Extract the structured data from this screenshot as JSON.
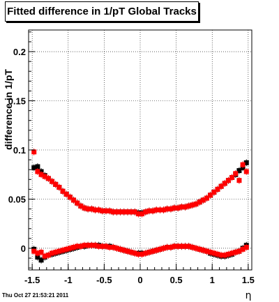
{
  "footer": {
    "timestamp": "Thu Oct 27 21:53:21 2011"
  },
  "chart_data": {
    "type": "scatter",
    "title": "Fitted difference in 1/pT  Global Tracks",
    "xlabel": "η",
    "ylabel": "difference in 1/pT",
    "xlim": [
      -1.55,
      1.55
    ],
    "ylim": [
      -0.022,
      0.222
    ],
    "xticks": [
      -1.5,
      -1,
      -0.5,
      0,
      0.5,
      1,
      1.5
    ],
    "xtick_labels": [
      "-1.5",
      "-1",
      "-0.5",
      "0",
      "0.5",
      "1",
      "1.5"
    ],
    "yticks": [
      0,
      0.05,
      0.1,
      0.15,
      0.2
    ],
    "ytick_labels": [
      "0",
      "0.05",
      "0.1",
      "0.15",
      "0.2"
    ],
    "grid": true,
    "series": [
      {
        "color": "#000000",
        "marker": "square",
        "points": [
          [
            -1.475,
            0.082
          ],
          [
            -1.425,
            0.083
          ],
          [
            -1.375,
            0.078
          ],
          [
            -1.325,
            0.074
          ],
          [
            -1.275,
            0.071
          ],
          [
            -1.225,
            0.068
          ],
          [
            -1.175,
            0.065
          ],
          [
            -1.125,
            0.062
          ],
          [
            -1.075,
            0.058
          ],
          [
            -1.025,
            0.055
          ],
          [
            -0.975,
            0.052
          ],
          [
            -0.925,
            0.049
          ],
          [
            -0.875,
            0.046
          ],
          [
            -0.825,
            0.043
          ],
          [
            -0.775,
            0.041
          ],
          [
            -0.725,
            0.04
          ],
          [
            -0.675,
            0.04
          ],
          [
            -0.625,
            0.039
          ],
          [
            -0.575,
            0.039
          ],
          [
            -0.525,
            0.038
          ],
          [
            -0.475,
            0.038
          ],
          [
            -0.425,
            0.038
          ],
          [
            -0.375,
            0.037
          ],
          [
            -0.325,
            0.037
          ],
          [
            -0.275,
            0.037
          ],
          [
            -0.225,
            0.037
          ],
          [
            -0.175,
            0.037
          ],
          [
            -0.125,
            0.037
          ],
          [
            -0.075,
            0.037
          ],
          [
            -0.025,
            0.036
          ],
          [
            0.025,
            0.036
          ],
          [
            0.075,
            0.037
          ],
          [
            0.125,
            0.038
          ],
          [
            0.175,
            0.038
          ],
          [
            0.225,
            0.039
          ],
          [
            0.275,
            0.039
          ],
          [
            0.325,
            0.039
          ],
          [
            0.375,
            0.04
          ],
          [
            0.425,
            0.04
          ],
          [
            0.475,
            0.041
          ],
          [
            0.525,
            0.041
          ],
          [
            0.575,
            0.042
          ],
          [
            0.625,
            0.042
          ],
          [
            0.675,
            0.043
          ],
          [
            0.725,
            0.044
          ],
          [
            0.775,
            0.045
          ],
          [
            0.825,
            0.047
          ],
          [
            0.875,
            0.049
          ],
          [
            0.925,
            0.051
          ],
          [
            0.975,
            0.054
          ],
          [
            1.025,
            0.057
          ],
          [
            1.075,
            0.06
          ],
          [
            1.125,
            0.063
          ],
          [
            1.175,
            0.066
          ],
          [
            1.225,
            0.069
          ],
          [
            1.275,
            0.072
          ],
          [
            1.325,
            0.075
          ],
          [
            1.375,
            0.079
          ],
          [
            1.425,
            0.082
          ],
          [
            1.475,
            0.087
          ],
          [
            -1.475,
            -0.001
          ],
          [
            -1.425,
            -0.009
          ],
          [
            -1.375,
            -0.012
          ],
          [
            -1.325,
            -0.009
          ],
          [
            -1.275,
            -0.007
          ],
          [
            -1.225,
            -0.006
          ],
          [
            -1.175,
            -0.005
          ],
          [
            -1.125,
            -0.004
          ],
          [
            -1.075,
            -0.003
          ],
          [
            -1.025,
            -0.002
          ],
          [
            -0.975,
            -0.001
          ],
          [
            -0.925,
            0.0
          ],
          [
            -0.875,
            0.001
          ],
          [
            -0.825,
            0.002
          ],
          [
            -0.775,
            0.002
          ],
          [
            -0.725,
            0.003
          ],
          [
            -0.675,
            0.003
          ],
          [
            -0.625,
            0.003
          ],
          [
            -0.575,
            0.003
          ],
          [
            -0.525,
            0.002
          ],
          [
            -0.475,
            0.002
          ],
          [
            -0.425,
            0.002
          ],
          [
            -0.375,
            0.001
          ],
          [
            -0.325,
            0.0
          ],
          [
            -0.275,
            -0.001
          ],
          [
            -0.225,
            -0.002
          ],
          [
            -0.175,
            -0.003
          ],
          [
            -0.125,
            -0.004
          ],
          [
            -0.075,
            -0.005
          ],
          [
            -0.025,
            -0.005
          ],
          [
            0.025,
            -0.005
          ],
          [
            0.075,
            -0.005
          ],
          [
            0.125,
            -0.004
          ],
          [
            0.175,
            -0.003
          ],
          [
            0.225,
            -0.002
          ],
          [
            0.275,
            -0.001
          ],
          [
            0.325,
            0.0
          ],
          [
            0.375,
            0.001
          ],
          [
            0.425,
            0.001
          ],
          [
            0.475,
            0.002
          ],
          [
            0.525,
            0.002
          ],
          [
            0.575,
            0.002
          ],
          [
            0.625,
            0.002
          ],
          [
            0.675,
            0.002
          ],
          [
            0.725,
            0.001
          ],
          [
            0.775,
            0.0
          ],
          [
            0.825,
            -0.001
          ],
          [
            0.875,
            -0.002
          ],
          [
            0.925,
            -0.003
          ],
          [
            0.975,
            -0.005
          ],
          [
            1.025,
            -0.006
          ],
          [
            1.075,
            -0.007
          ],
          [
            1.125,
            -0.008
          ],
          [
            1.175,
            -0.008
          ],
          [
            1.225,
            -0.007
          ],
          [
            1.275,
            -0.006
          ],
          [
            1.325,
            -0.004
          ],
          [
            1.375,
            -0.003
          ],
          [
            1.425,
            0.0
          ],
          [
            1.475,
            0.003
          ]
        ]
      },
      {
        "color": "#ff0000",
        "marker": "square",
        "points": [
          [
            -1.475,
            0.098
          ],
          [
            -1.425,
            0.078
          ],
          [
            -1.375,
            0.075
          ],
          [
            -1.325,
            0.073
          ],
          [
            -1.275,
            0.071
          ],
          [
            -1.225,
            0.068
          ],
          [
            -1.175,
            0.065
          ],
          [
            -1.125,
            0.062
          ],
          [
            -1.075,
            0.058
          ],
          [
            -1.025,
            0.055
          ],
          [
            -0.975,
            0.052
          ],
          [
            -0.925,
            0.049
          ],
          [
            -0.875,
            0.046
          ],
          [
            -0.825,
            0.043
          ],
          [
            -0.775,
            0.041
          ],
          [
            -0.725,
            0.04
          ],
          [
            -0.675,
            0.04
          ],
          [
            -0.625,
            0.039
          ],
          [
            -0.575,
            0.039
          ],
          [
            -0.525,
            0.038
          ],
          [
            -0.475,
            0.038
          ],
          [
            -0.425,
            0.038
          ],
          [
            -0.375,
            0.037
          ],
          [
            -0.325,
            0.037
          ],
          [
            -0.275,
            0.037
          ],
          [
            -0.225,
            0.037
          ],
          [
            -0.175,
            0.037
          ],
          [
            -0.125,
            0.037
          ],
          [
            -0.075,
            0.037
          ],
          [
            -0.025,
            0.035
          ],
          [
            0.025,
            0.035
          ],
          [
            0.075,
            0.037
          ],
          [
            0.125,
            0.038
          ],
          [
            0.175,
            0.038
          ],
          [
            0.225,
            0.039
          ],
          [
            0.275,
            0.039
          ],
          [
            0.325,
            0.039
          ],
          [
            0.375,
            0.04
          ],
          [
            0.425,
            0.04
          ],
          [
            0.475,
            0.041
          ],
          [
            0.525,
            0.041
          ],
          [
            0.575,
            0.042
          ],
          [
            0.625,
            0.042
          ],
          [
            0.675,
            0.043
          ],
          [
            0.725,
            0.044
          ],
          [
            0.775,
            0.045
          ],
          [
            0.825,
            0.047
          ],
          [
            0.875,
            0.049
          ],
          [
            0.925,
            0.051
          ],
          [
            0.975,
            0.054
          ],
          [
            1.025,
            0.057
          ],
          [
            1.075,
            0.06
          ],
          [
            1.125,
            0.063
          ],
          [
            1.175,
            0.066
          ],
          [
            1.225,
            0.069
          ],
          [
            1.275,
            0.072
          ],
          [
            1.325,
            0.076
          ],
          [
            1.375,
            0.069
          ],
          [
            1.425,
            0.085
          ],
          [
            1.475,
            0.078
          ],
          [
            -1.475,
            -0.003
          ],
          [
            -1.425,
            -0.005
          ],
          [
            -1.375,
            -0.004
          ],
          [
            -1.325,
            -0.008
          ],
          [
            -1.275,
            -0.007
          ],
          [
            -1.225,
            -0.005
          ],
          [
            -1.175,
            -0.004
          ],
          [
            -1.125,
            -0.003
          ],
          [
            -1.075,
            -0.002
          ],
          [
            -1.025,
            -0.001
          ],
          [
            -0.975,
            0.0
          ],
          [
            -0.925,
            0.001
          ],
          [
            -0.875,
            0.002
          ],
          [
            -0.825,
            0.002
          ],
          [
            -0.775,
            0.003
          ],
          [
            -0.725,
            0.003
          ],
          [
            -0.675,
            0.003
          ],
          [
            -0.625,
            0.003
          ],
          [
            -0.575,
            0.002
          ],
          [
            -0.525,
            0.002
          ],
          [
            -0.475,
            0.002
          ],
          [
            -0.425,
            0.001
          ],
          [
            -0.375,
            0.001
          ],
          [
            -0.325,
            0.0
          ],
          [
            -0.275,
            -0.001
          ],
          [
            -0.225,
            -0.002
          ],
          [
            -0.175,
            -0.003
          ],
          [
            -0.125,
            -0.004
          ],
          [
            -0.075,
            -0.005
          ],
          [
            -0.025,
            -0.006
          ],
          [
            0.025,
            -0.006
          ],
          [
            0.075,
            -0.005
          ],
          [
            0.125,
            -0.004
          ],
          [
            0.175,
            -0.003
          ],
          [
            0.225,
            -0.002
          ],
          [
            0.275,
            -0.001
          ],
          [
            0.325,
            0.0
          ],
          [
            0.375,
            0.001
          ],
          [
            0.425,
            0.001
          ],
          [
            0.475,
            0.002
          ],
          [
            0.525,
            0.002
          ],
          [
            0.575,
            0.002
          ],
          [
            0.625,
            0.002
          ],
          [
            0.675,
            0.002
          ],
          [
            0.725,
            0.001
          ],
          [
            0.775,
            0.0
          ],
          [
            0.825,
            -0.001
          ],
          [
            0.875,
            -0.002
          ],
          [
            0.925,
            -0.003
          ],
          [
            0.975,
            -0.004
          ],
          [
            1.025,
            -0.005
          ],
          [
            1.075,
            -0.006
          ],
          [
            1.125,
            -0.007
          ],
          [
            1.175,
            -0.007
          ],
          [
            1.225,
            -0.006
          ],
          [
            1.275,
            -0.005
          ],
          [
            1.325,
            -0.004
          ],
          [
            1.375,
            -0.003
          ],
          [
            1.425,
            -0.001
          ],
          [
            1.475,
            0.001
          ]
        ]
      }
    ]
  }
}
